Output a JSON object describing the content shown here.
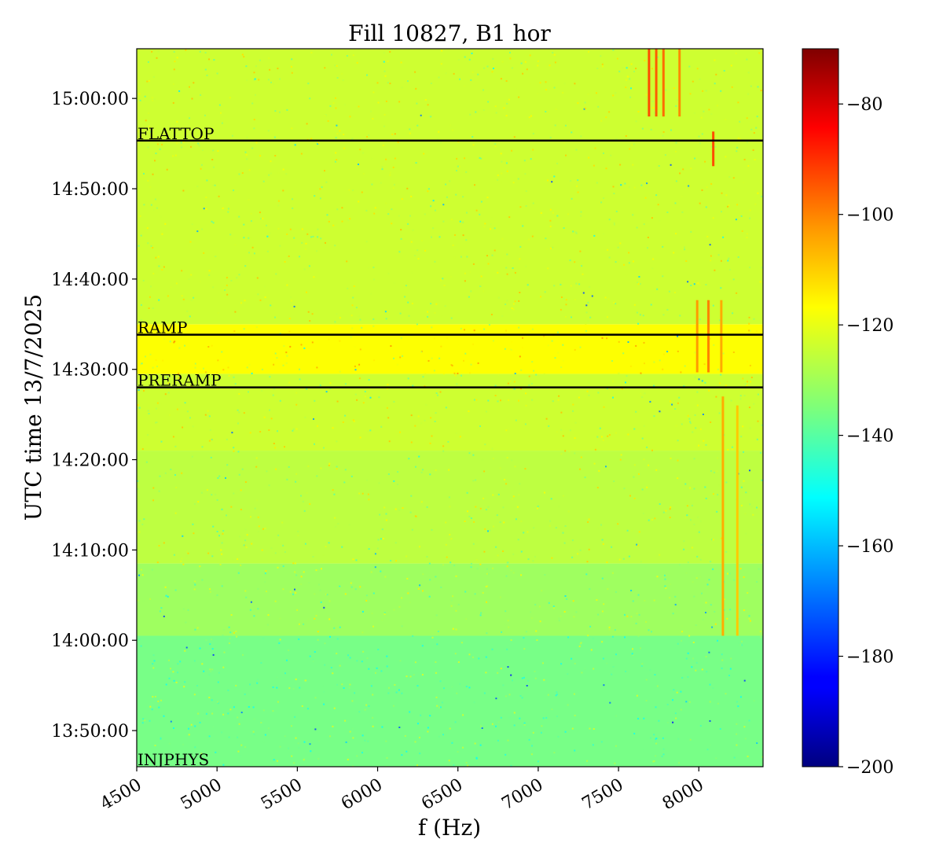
{
  "chart_data": {
    "type": "heatmap",
    "title": "Fill 10827, B1 hor",
    "xlabel": "f (Hz)",
    "ylabel": "UTC time 13/7/2025",
    "x_range": [
      4500,
      8400
    ],
    "x_ticks": [
      4500,
      5000,
      5500,
      6000,
      6500,
      7000,
      7500,
      8000
    ],
    "y_range": [
      "13:46:00",
      "15:05:30"
    ],
    "y_ticks": [
      "13:50:00",
      "14:00:00",
      "14:10:00",
      "14:20:00",
      "14:30:00",
      "14:40:00",
      "14:50:00",
      "15:00:00"
    ],
    "colorbar": {
      "colormap": "jet",
      "range": [
        -200,
        -70
      ],
      "ticks": [
        -80,
        -100,
        -120,
        -140,
        -160,
        -180,
        -200
      ],
      "tick_labels": [
        "−80",
        "−100",
        "−120",
        "−140",
        "−160",
        "−180",
        "−200"
      ]
    },
    "background_bands": [
      {
        "from": "13:46:00",
        "to": "14:00:30",
        "level_dB": -136
      },
      {
        "from": "14:00:30",
        "to": "14:08:30",
        "level_dB": -131
      },
      {
        "from": "14:08:30",
        "to": "14:21:00",
        "level_dB": -127
      },
      {
        "from": "14:21:00",
        "to": "14:29:30",
        "level_dB": -125
      },
      {
        "from": "14:29:30",
        "to": "14:35:00",
        "level_dB": -119
      },
      {
        "from": "14:35:00",
        "to": "15:05:30",
        "level_dB": -125
      }
    ],
    "phase_markers": [
      {
        "label": "FLATTOP",
        "time": "14:55:20"
      },
      {
        "label": "RAMP",
        "time": "14:33:50"
      },
      {
        "label": "PRERAMP",
        "time": "14:28:00"
      },
      {
        "label": "INJPHYS",
        "time": "13:46:00"
      }
    ],
    "spectral_lines": [
      {
        "f": 7690,
        "from": "14:58:00",
        "to": "15:05:30",
        "level_dB": -96
      },
      {
        "f": 7735,
        "from": "14:58:00",
        "to": "15:05:30",
        "level_dB": -98
      },
      {
        "f": 7780,
        "from": "14:58:00",
        "to": "15:05:30",
        "level_dB": -100
      },
      {
        "f": 7880,
        "from": "14:58:00",
        "to": "15:05:30",
        "level_dB": -104
      },
      {
        "f": 8090,
        "from": "14:52:30",
        "to": "14:56:20",
        "level_dB": -96
      },
      {
        "f": 7990,
        "from": "14:29:40",
        "to": "14:37:40",
        "level_dB": -106
      },
      {
        "f": 8060,
        "from": "14:29:40",
        "to": "14:37:40",
        "level_dB": -103
      },
      {
        "f": 8140,
        "from": "14:29:40",
        "to": "14:37:40",
        "level_dB": -108
      },
      {
        "f": 8150,
        "from": "14:00:30",
        "to": "14:27:00",
        "level_dB": -108
      },
      {
        "f": 8240,
        "from": "14:00:30",
        "to": "14:26:00",
        "level_dB": -112
      }
    ]
  }
}
